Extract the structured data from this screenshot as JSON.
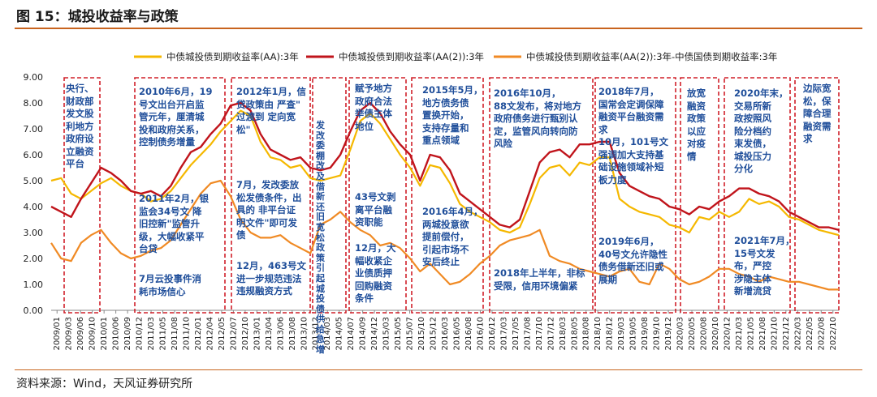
{
  "figure_title": "图 15：城投收益率与政策",
  "source": "资料来源：Wind，天风证券研究所",
  "chart_data": {
    "type": "line",
    "title": "",
    "xlabel": "",
    "ylabel": "",
    "ylim": [
      0,
      9
    ],
    "yticks": [
      "0.00",
      "1.00",
      "2.00",
      "3.00",
      "4.00",
      "5.00",
      "6.00",
      "7.00",
      "8.00",
      "9.00"
    ],
    "x_tick_labels": [
      "2009/01",
      "2009/03",
      "2009/06",
      "2009/10",
      "2010/01",
      "2010/06",
      "2010/09",
      "2010/12",
      "2011/03",
      "2011/05",
      "2011/08",
      "2011/10",
      "2012/01",
      "2012/04",
      "2012/05",
      "2012/07",
      "2012/10",
      "2013/01",
      "2013/04",
      "2013/06",
      "2013/08",
      "2013/10",
      "2013/12",
      "2014/03",
      "2014/05",
      "2014/07",
      "2014/09",
      "2014/12",
      "2015/03",
      "2015/05",
      "2015/07",
      "2015/10",
      "2015/12",
      "2016/03",
      "2016/05",
      "2016/08",
      "2016/10",
      "2016/12",
      "2017/03",
      "2017/05",
      "2017/08",
      "2017/10",
      "2017/12",
      "2018/03",
      "2018/05",
      "2018/08",
      "2018/10",
      "2018/12",
      "2019/03",
      "2019/05",
      "2019/08",
      "2019/10",
      "2019/12",
      "2020/03",
      "2020/05",
      "2020/08",
      "2020/10",
      "2020/12",
      "2021/03",
      "2021/05",
      "2021/08",
      "2021/10",
      "2021/12",
      "2022/03",
      "2022/05",
      "2022/08",
      "2022/10"
    ],
    "legend_position": "top",
    "grid": false,
    "series": [
      {
        "name": "中债城投债到期收益率(AA):3年",
        "color": "#f5b800",
        "values": [
          5.0,
          5.1,
          4.5,
          4.3,
          4.6,
          4.9,
          5.1,
          4.8,
          4.6,
          4.5,
          4.2,
          4.3,
          4.6,
          5.1,
          5.6,
          6.0,
          6.4,
          6.9,
          7.3,
          7.7,
          7.5,
          6.5,
          5.9,
          5.8,
          5.5,
          5.6,
          5.1,
          5.0,
          5.1,
          5.2,
          6.2,
          7.3,
          7.6,
          7.2,
          6.6,
          6.0,
          5.5,
          4.8,
          5.6,
          5.5,
          4.9,
          4.1,
          3.8,
          3.6,
          3.4,
          3.1,
          3.0,
          3.2,
          4.1,
          5.1,
          5.5,
          5.6,
          5.2,
          5.7,
          5.6,
          5.9,
          5.9,
          4.3,
          4.0,
          3.8,
          3.7,
          3.6,
          3.3,
          3.2,
          3.0,
          3.6,
          3.5,
          3.8,
          3.6,
          3.8,
          4.3,
          4.1,
          4.2,
          4.0,
          3.6,
          3.5,
          3.3,
          3.1,
          3.0,
          2.9
        ]
      },
      {
        "name": "中债城投债到期收益率(AA(2)):3年",
        "color": "#c0141b",
        "values": [
          4.0,
          3.8,
          3.6,
          4.3,
          4.9,
          5.5,
          5.3,
          5.0,
          4.6,
          4.5,
          4.6,
          4.4,
          4.8,
          5.5,
          6.1,
          6.3,
          6.8,
          7.2,
          7.9,
          8.0,
          7.7,
          6.8,
          6.2,
          6.0,
          5.8,
          5.9,
          5.5,
          5.4,
          5.5,
          6.0,
          6.9,
          7.7,
          8.0,
          7.6,
          6.9,
          6.4,
          6.0,
          5.0,
          6.0,
          5.9,
          5.4,
          4.5,
          4.2,
          3.9,
          3.6,
          3.3,
          3.2,
          3.5,
          4.6,
          5.7,
          6.1,
          6.2,
          5.9,
          6.4,
          6.4,
          6.5,
          6.5,
          5.3,
          4.8,
          4.6,
          4.4,
          4.3,
          4.0,
          3.9,
          3.7,
          4.0,
          3.9,
          4.2,
          4.4,
          4.7,
          4.7,
          4.5,
          4.4,
          4.2,
          3.8,
          3.6,
          3.4,
          3.2,
          3.2,
          3.1
        ]
      },
      {
        "name": "中债城投债到期收益率(AA(2)):3年-中债国债到期收益率:3年",
        "color": "#f08a24",
        "values": [
          2.6,
          2.0,
          1.9,
          2.6,
          2.9,
          3.1,
          2.6,
          2.2,
          2.0,
          2.1,
          2.3,
          2.4,
          2.7,
          3.3,
          3.9,
          4.5,
          4.9,
          5.0,
          4.4,
          3.5,
          3.0,
          2.8,
          2.8,
          2.9,
          2.6,
          2.4,
          2.2,
          3.3,
          3.5,
          3.8,
          3.4,
          3.1,
          2.9,
          2.5,
          2.6,
          2.4,
          2.0,
          1.5,
          1.8,
          1.4,
          1.0,
          1.1,
          1.4,
          1.8,
          2.1,
          2.5,
          2.7,
          2.8,
          2.9,
          3.1,
          2.1,
          1.9,
          1.8,
          1.6,
          1.5,
          1.4,
          1.3,
          1.5,
          1.6,
          1.1,
          1.0,
          1.8,
          1.6,
          1.2,
          1.0,
          1.1,
          1.3,
          1.6,
          1.6,
          1.4,
          1.3,
          1.1,
          1.3,
          1.2,
          1.1,
          1.1,
          1.0,
          0.9,
          0.8,
          0.8
        ]
      }
    ],
    "annotations": [
      {
        "text": "央行、\n财政部\n发文股\n利地方\n政府设\n立融资\n平台"
      },
      {
        "text": "2010年6月，19\n号文出台开启监\n管元年，厘清城\n投和政府关系，\n控制债务增量"
      },
      {
        "text": "2011年2月，银\n监会34号文 降\n旧控新\"监管升\n级，大幅收紧平\n台贷"
      },
      {
        "text": "7月云投事件消\n耗市场信心"
      },
      {
        "text": "2012年1月，信\n贷政策由 严查\"\n过渡到 定向宽\n松\""
      },
      {
        "text": "7月，发改委放\n松发债条件，出\n具的 非平台证\n明文件\"即可发\n债"
      },
      {
        "text": "12月，463号文\n进一步规范违法\n违规融资方式"
      },
      {
        "text": "发\n改\n委\n棚\n改\n及\n借\n新\n还\n旧\n宽\n松\n政\n策\n引\n起\n城\n投\n债\n供\n给\n急\n增"
      },
      {
        "text": "赋予地方\n政府合法\n举债主体\n地位"
      },
      {
        "text": "43号文剥\n离平台融\n资职能"
      },
      {
        "text": "12月，大\n幅收紧企\n业债质押\n回购融资\n条件"
      },
      {
        "text": "2015年5月，\n地方债务债\n置换开始，\n支持存量和\n重点领域"
      },
      {
        "text": "2016年4月，\n两城投意欲\n提前偿付，\n引起市场不\n安后终止"
      },
      {
        "text": "2016年10月，\n88文发布，将对地方\n政府债务进行甄别认\n定，监管风向转向防\n风险"
      },
      {
        "text": "2018年上半年，非标\n受限，信用环境偏紧"
      },
      {
        "text": "2018年7月，\n国常会定调保障\n融资平台融资需\n求\n10月，101号文\n强调加大支持基\n础设施领域补短\n板力度"
      },
      {
        "text": "2019年6月，\n40号文允许隐性\n债务借新还旧或\n展期"
      },
      {
        "text": "放宽\n融资\n政策\n以应\n对疫\n情"
      },
      {
        "text": "2020年末，\n交易所新\n政按照风\n险分档约\n束发债，\n城投压力\n分化"
      },
      {
        "text": "2021年7月，\n15号文发\n布，严控\n涉隐主体\n新增流贷"
      },
      {
        "text": "边际宽\n松，保\n障合理\n融资需\n求"
      }
    ]
  }
}
